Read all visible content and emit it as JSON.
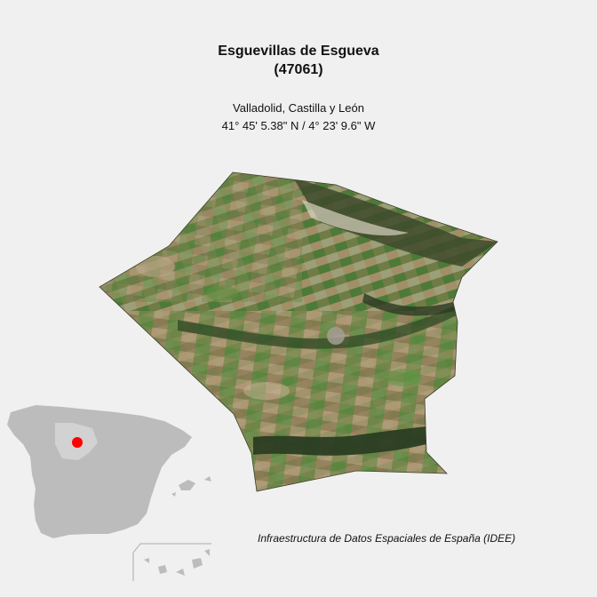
{
  "map": {
    "name": "Esguevillas de Esgueva",
    "code": "(47061)",
    "region": "Valladolid, Castilla y León",
    "coordinates": "41° 45' 5.38\" N / 4° 23' 9.6\" W",
    "credit": "Infraestructura de Datos Espaciales de España (IDEE)",
    "layers": {
      "municipality": "satellite-imagery",
      "locator": "spain-inset-map"
    },
    "colors": {
      "background": "#f0f0f0",
      "locator_land": "#bcbcbc",
      "locator_marker": "#ff0000",
      "locator_highlight": "#d9d9d9"
    }
  }
}
